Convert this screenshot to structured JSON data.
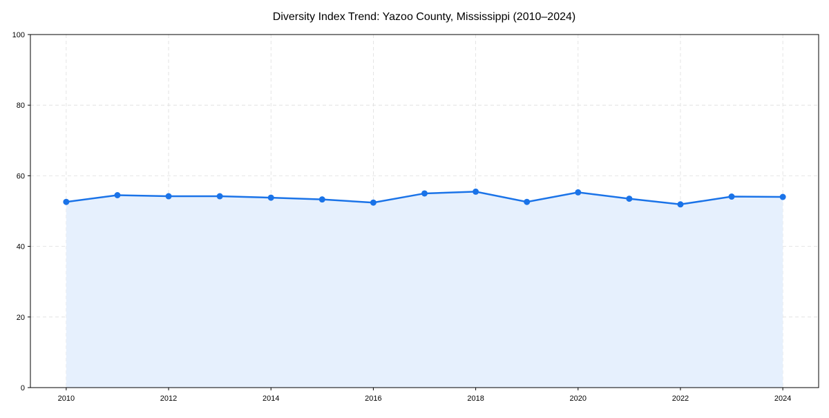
{
  "chart_data": {
    "type": "area",
    "title": "Diversity Index Trend: Yazoo County, Mississippi (2010–2024)",
    "xlabel": "",
    "ylabel": "",
    "x": [
      2010,
      2011,
      2012,
      2013,
      2014,
      2015,
      2016,
      2017,
      2018,
      2019,
      2020,
      2021,
      2022,
      2023,
      2024
    ],
    "series": [
      {
        "name": "Diversity Index",
        "values": [
          52.6,
          54.5,
          54.2,
          54.2,
          53.8,
          53.3,
          52.4,
          55.0,
          55.5,
          52.6,
          55.3,
          53.5,
          51.9,
          54.1,
          54.0
        ]
      }
    ],
    "xlim": [
      2009.3,
      2024.7
    ],
    "ylim": [
      0,
      100
    ],
    "xticks": [
      "2010",
      "2012",
      "2014",
      "2016",
      "2018",
      "2020",
      "2022",
      "2024"
    ],
    "yticks": [
      "0",
      "20",
      "40",
      "60",
      "80",
      "100"
    ],
    "grid": true,
    "colors": {
      "line": "#1a73e8",
      "fill": "#e6f0fd",
      "grid": "#dddddd"
    }
  }
}
